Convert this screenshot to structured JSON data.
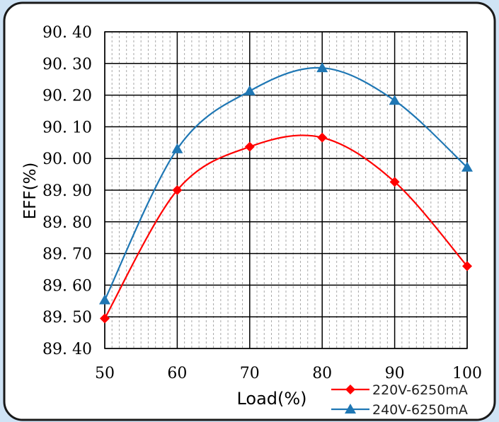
{
  "chart_data": {
    "type": "line",
    "x": [
      50,
      60,
      70,
      80,
      90,
      100
    ],
    "xticks": [
      "50",
      "60",
      "70",
      "80",
      "90",
      "100"
    ],
    "yticks": [
      "90.40",
      "90.30",
      "90.20",
      "90.10",
      "90.00",
      "89.90",
      "89.80",
      "89.70",
      "89.60",
      "89.50",
      "89.40"
    ],
    "series": [
      {
        "name": "220V-6250mA",
        "color": "#ff0000",
        "marker": "diamond",
        "values": [
          89.495,
          89.9,
          90.037,
          90.066,
          89.926,
          89.66
        ]
      },
      {
        "name": "240V-6250mA",
        "color": "#1f77b4",
        "marker": "triangle",
        "values": [
          89.553,
          90.03,
          90.213,
          90.286,
          90.183,
          89.972
        ]
      }
    ],
    "xlabel": "Load(%)",
    "ylabel": "EFF(%)",
    "xlim": [
      50,
      100
    ],
    "ylim": [
      89.4,
      90.4
    ],
    "grid": true,
    "legend_position": "bottom-right"
  }
}
